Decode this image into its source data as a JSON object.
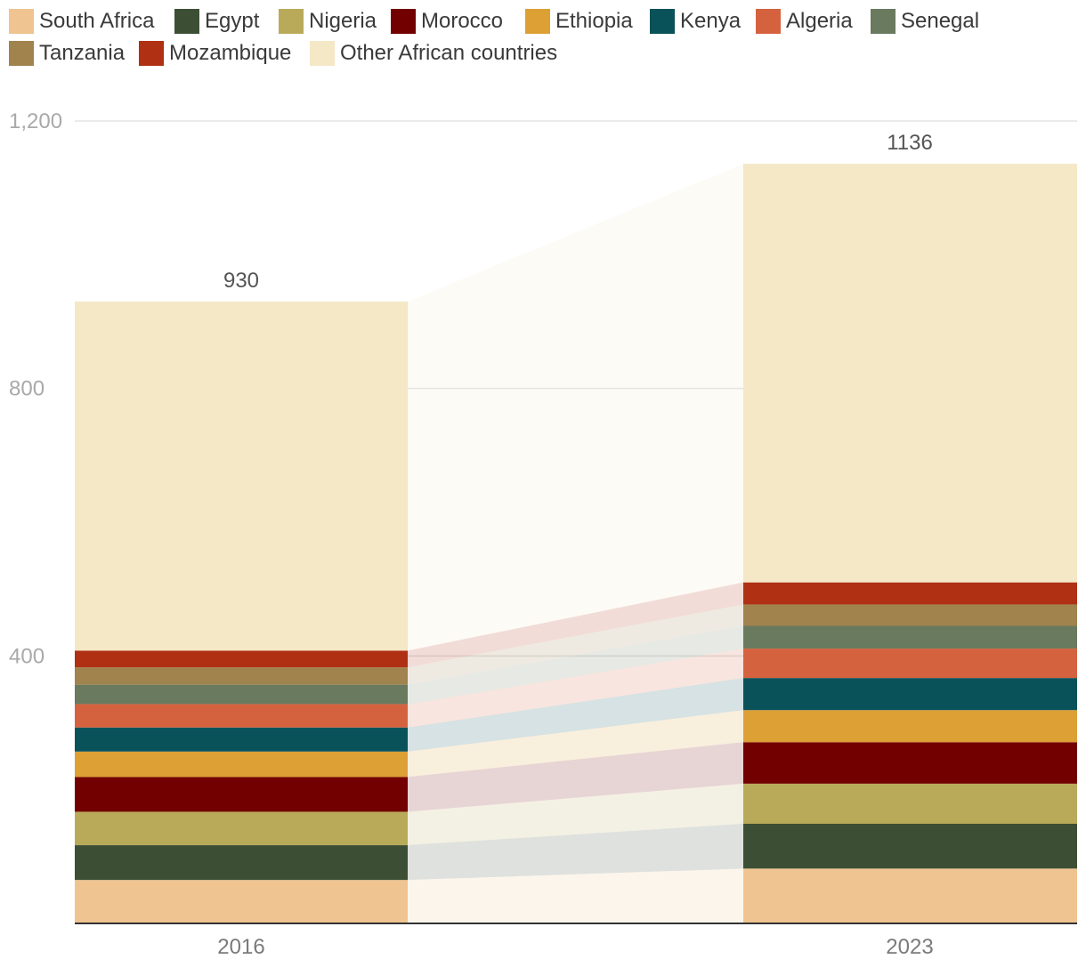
{
  "chart_data": {
    "type": "stacked-bar",
    "title": "",
    "xlabel": "",
    "ylabel": "",
    "ylim": [
      0,
      1200
    ],
    "yticks": [
      {
        "value": 400,
        "label": "400"
      },
      {
        "value": 800,
        "label": "800"
      },
      {
        "value": 1200,
        "label": "1,200"
      }
    ],
    "categories": [
      "2016",
      "2023"
    ],
    "totals": [
      {
        "value": 930,
        "label": "930"
      },
      {
        "value": 1136,
        "label": "1136"
      }
    ],
    "legend_position": "top-left",
    "series": [
      {
        "name": "South Africa",
        "color": "#efc490",
        "values": [
          65,
          82
        ]
      },
      {
        "name": "Egypt",
        "color": "#3c4f35",
        "values": [
          52,
          67
        ]
      },
      {
        "name": "Nigeria",
        "color": "#b9aa5a",
        "values": [
          50,
          60
        ]
      },
      {
        "name": "Morocco",
        "color": "#730000",
        "values": [
          52,
          62
        ]
      },
      {
        "name": "Ethiopia",
        "color": "#dca035",
        "values": [
          38,
          48
        ]
      },
      {
        "name": "Kenya",
        "color": "#0a525a",
        "values": [
          36,
          48
        ]
      },
      {
        "name": "Algeria",
        "color": "#d5623f",
        "values": [
          35,
          44
        ]
      },
      {
        "name": "Senegal",
        "color": "#697a5f",
        "values": [
          29,
          34
        ]
      },
      {
        "name": "Tanzania",
        "color": "#a0834d",
        "values": [
          26,
          32
        ]
      },
      {
        "name": "Mozambique",
        "color": "#b03014",
        "values": [
          25,
          33
        ]
      },
      {
        "name": "Other African countries",
        "color": "#f4e8c7",
        "values": [
          522,
          626
        ]
      }
    ]
  }
}
